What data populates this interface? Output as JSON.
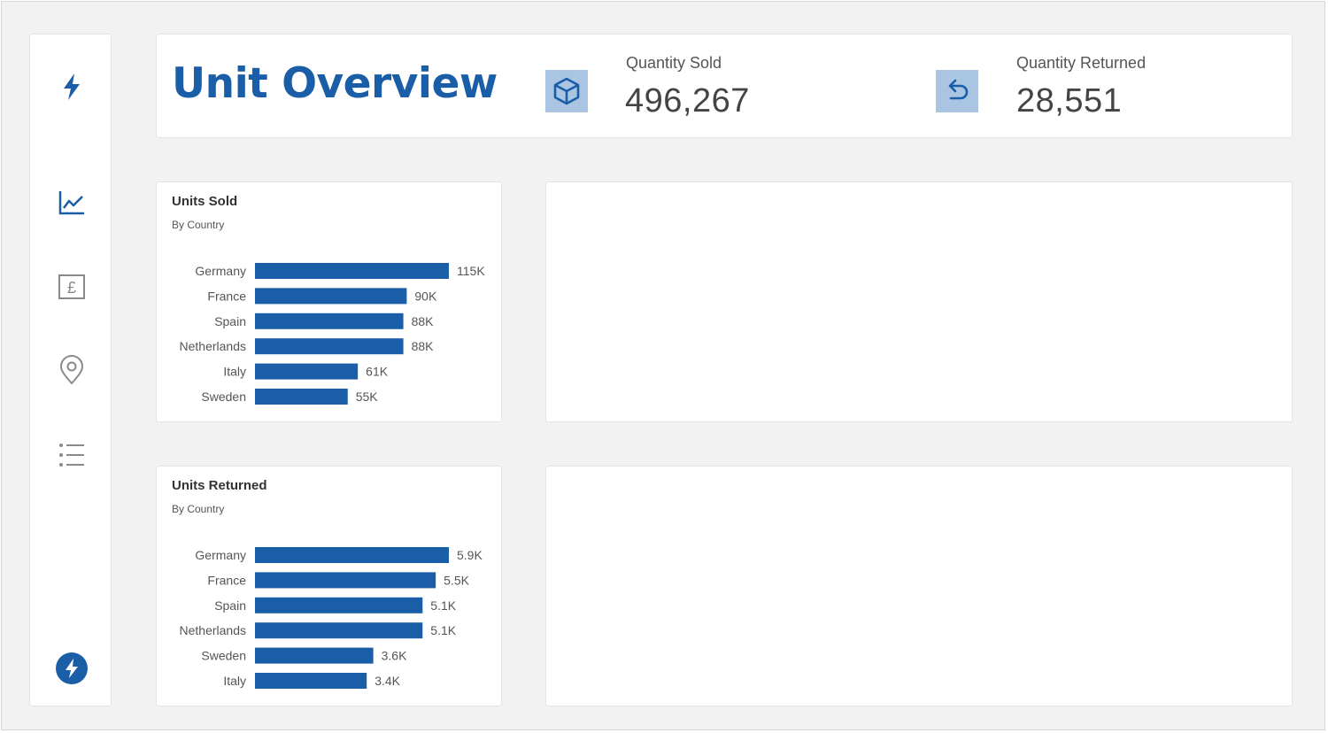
{
  "header": {
    "title": "Unit Overview",
    "kpis": [
      {
        "label": "Quantity Sold",
        "value": "496,267",
        "icon": "cube-icon"
      },
      {
        "label": "Quantity Returned",
        "value": "28,551",
        "icon": "return-arrow-icon"
      }
    ]
  },
  "sidebar": {
    "items": [
      {
        "icon": "lightning-icon"
      },
      {
        "icon": "line-chart-icon"
      },
      {
        "icon": "pound-currency-icon"
      },
      {
        "icon": "location-pin-icon"
      },
      {
        "icon": "list-icon"
      },
      {
        "icon": "lightning-circle-icon"
      }
    ]
  },
  "colors": {
    "accent": "#1a5ea8",
    "bar": "#1a5ea8",
    "kpi_icon_bg": "#a9c5e2",
    "background": "#f2f2f2"
  },
  "chart_data": [
    {
      "type": "bar",
      "orientation": "horizontal",
      "title": "Units Sold",
      "subtitle": "By Country",
      "categories": [
        "Germany",
        "France",
        "Spain",
        "Netherlands",
        "Italy",
        "Sweden"
      ],
      "values": [
        115000,
        90000,
        88000,
        88000,
        61000,
        55000
      ],
      "labels": [
        "115K",
        "90K",
        "88K",
        "88K",
        "61K",
        "55K"
      ],
      "xlim": [
        0,
        115000
      ],
      "grid": false
    },
    {
      "type": "bar",
      "orientation": "horizontal",
      "title": "Units Returned",
      "subtitle": "By Country",
      "categories": [
        "Germany",
        "France",
        "Spain",
        "Netherlands",
        "Sweden",
        "Italy"
      ],
      "values": [
        5900,
        5500,
        5100,
        5100,
        3600,
        3400
      ],
      "labels": [
        "5.9K",
        "5.5K",
        "5.1K",
        "5.1K",
        "3.6K",
        "3.4K"
      ],
      "xlim": [
        0,
        5900
      ],
      "grid": false
    }
  ]
}
